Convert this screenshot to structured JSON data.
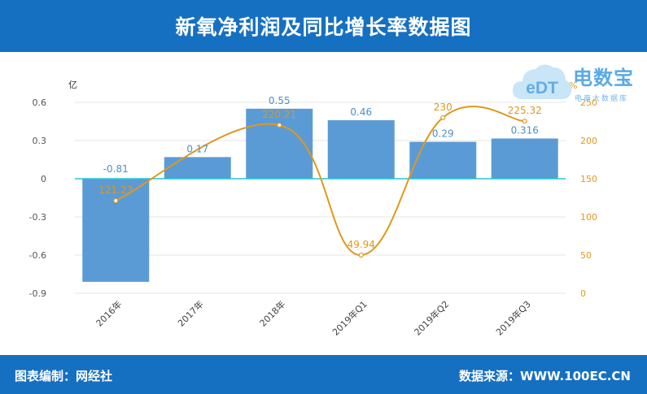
{
  "header": {
    "title": "新氧净利润及同比增长率数据图"
  },
  "footer": {
    "left": "图表编制：网经社",
    "right": "数据来源：WWW.100EC.CN"
  },
  "logo": {
    "brand": "电数宝",
    "tagline": "电商大数据库",
    "mark_text": "eDT"
  },
  "colors": {
    "header_bg": "#1670c2",
    "bar": "#5b9bd5",
    "line": "#e0981c",
    "zero_line": "#26c6da"
  },
  "chart_data": {
    "type": "bar",
    "categories": [
      "2016年",
      "2017年",
      "2018年",
      "2019年Q1",
      "2019年Q2",
      "2019年Q3"
    ],
    "series": [
      {
        "type": "bar",
        "axis": "left",
        "values": [
          -0.81,
          0.17,
          0.55,
          0.46,
          0.29,
          0.316
        ],
        "labels": [
          "-0.81",
          "0.17",
          "0.55",
          "0.46",
          "0.29",
          "0.316"
        ]
      },
      {
        "type": "line",
        "axis": "right",
        "values": [
          121.23,
          null,
          220.21,
          49.94,
          230,
          225.32
        ],
        "labels": [
          "121.23",
          "",
          "220.21",
          "49.94",
          "230",
          "225.32"
        ]
      }
    ],
    "y_left": {
      "unit": "亿",
      "range": [
        -0.9,
        0.6
      ],
      "ticks": [
        -0.9,
        -0.6,
        -0.3,
        0,
        0.3,
        0.6
      ],
      "tick_labels": [
        "-0.9",
        "-0.6",
        "-0.3",
        "0",
        "0.3",
        "0.6"
      ]
    },
    "y_right": {
      "unit": "%",
      "range": [
        0,
        250
      ],
      "ticks": [
        0,
        50,
        100,
        150,
        200,
        250
      ],
      "tick_labels": [
        "0",
        "50",
        "100",
        "150",
        "200",
        "250"
      ]
    },
    "grid": true,
    "legend": "none"
  }
}
